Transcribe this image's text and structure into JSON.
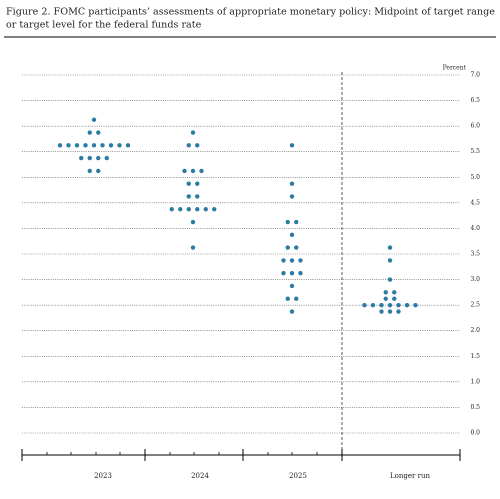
{
  "chart_data": {
    "type": "dot",
    "title": "Figure 2.  FOMC participants’ assessments of appropriate monetary policy: Midpoint of target range",
    "subtitle": "or target level for the federal funds rate",
    "ylabel": "Percent",
    "categories": [
      "2023",
      "2024",
      "Longer run"
    ],
    "all_categories": [
      "2023",
      "2024",
      "2025",
      "Longer run"
    ],
    "values": [
      [
        6.125,
        5.875,
        5.875,
        5.625,
        5.625,
        5.625,
        5.625,
        5.625,
        5.625,
        5.625,
        5.625,
        5.625,
        5.375,
        5.375,
        5.375,
        5.375,
        5.125,
        5.125
      ],
      [
        5.875,
        5.625,
        5.625,
        5.125,
        5.125,
        5.125,
        4.875,
        4.875,
        4.625,
        4.625,
        4.375,
        4.375,
        4.375,
        4.375,
        4.375,
        4.375,
        4.125,
        3.625
      ],
      [
        5.625,
        4.875,
        4.625,
        4.125,
        4.125,
        3.875,
        3.625,
        3.625,
        3.375,
        3.375,
        3.375,
        3.125,
        3.125,
        3.125,
        2.875,
        2.625,
        2.625,
        2.375
      ],
      [
        3.625,
        3.375,
        3.0,
        2.75,
        2.75,
        2.625,
        2.625,
        2.5,
        2.5,
        2.5,
        2.5,
        2.5,
        2.5,
        2.5,
        2.375,
        2.375,
        2.375
      ]
    ],
    "color": "#2b7ba3",
    "ylim": [
      0,
      7
    ],
    "yticks": [
      {
        "value": 0,
        "label": "0.0"
      },
      0.5,
      {
        "value": 1,
        "label": "1.0"
      },
      1.5,
      {
        "value": 2,
        "label": "2.0"
      },
      2.5,
      {
        "value": 3,
        "label": "3.0"
      },
      3.5,
      {
        "value": 4,
        "label": "4.0"
      },
      4.5,
      {
        "value": 5,
        "label": "5.0"
      },
      5.5,
      {
        "value": 6,
        "label": "6.0"
      },
      6.5,
      {
        "value": 7,
        "label": "7.0"
      }
    ],
    "grid": true
  }
}
